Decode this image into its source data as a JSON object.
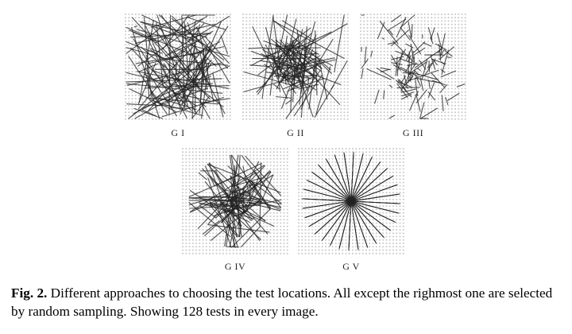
{
  "figure": {
    "panels": [
      {
        "label": "G I",
        "method": "G I"
      },
      {
        "label": "G II",
        "method": "G II"
      },
      {
        "label": "G III",
        "method": "G III"
      },
      {
        "label": "G IV",
        "method": "G IV"
      },
      {
        "label": "G V",
        "method": "G V"
      }
    ],
    "tests_per_image": 128
  },
  "caption": {
    "lead": "Fig. 2.",
    "text": " Different approaches to choosing the test locations. All except the righmost one are selected by random sampling. Showing 128 tests in every image."
  }
}
